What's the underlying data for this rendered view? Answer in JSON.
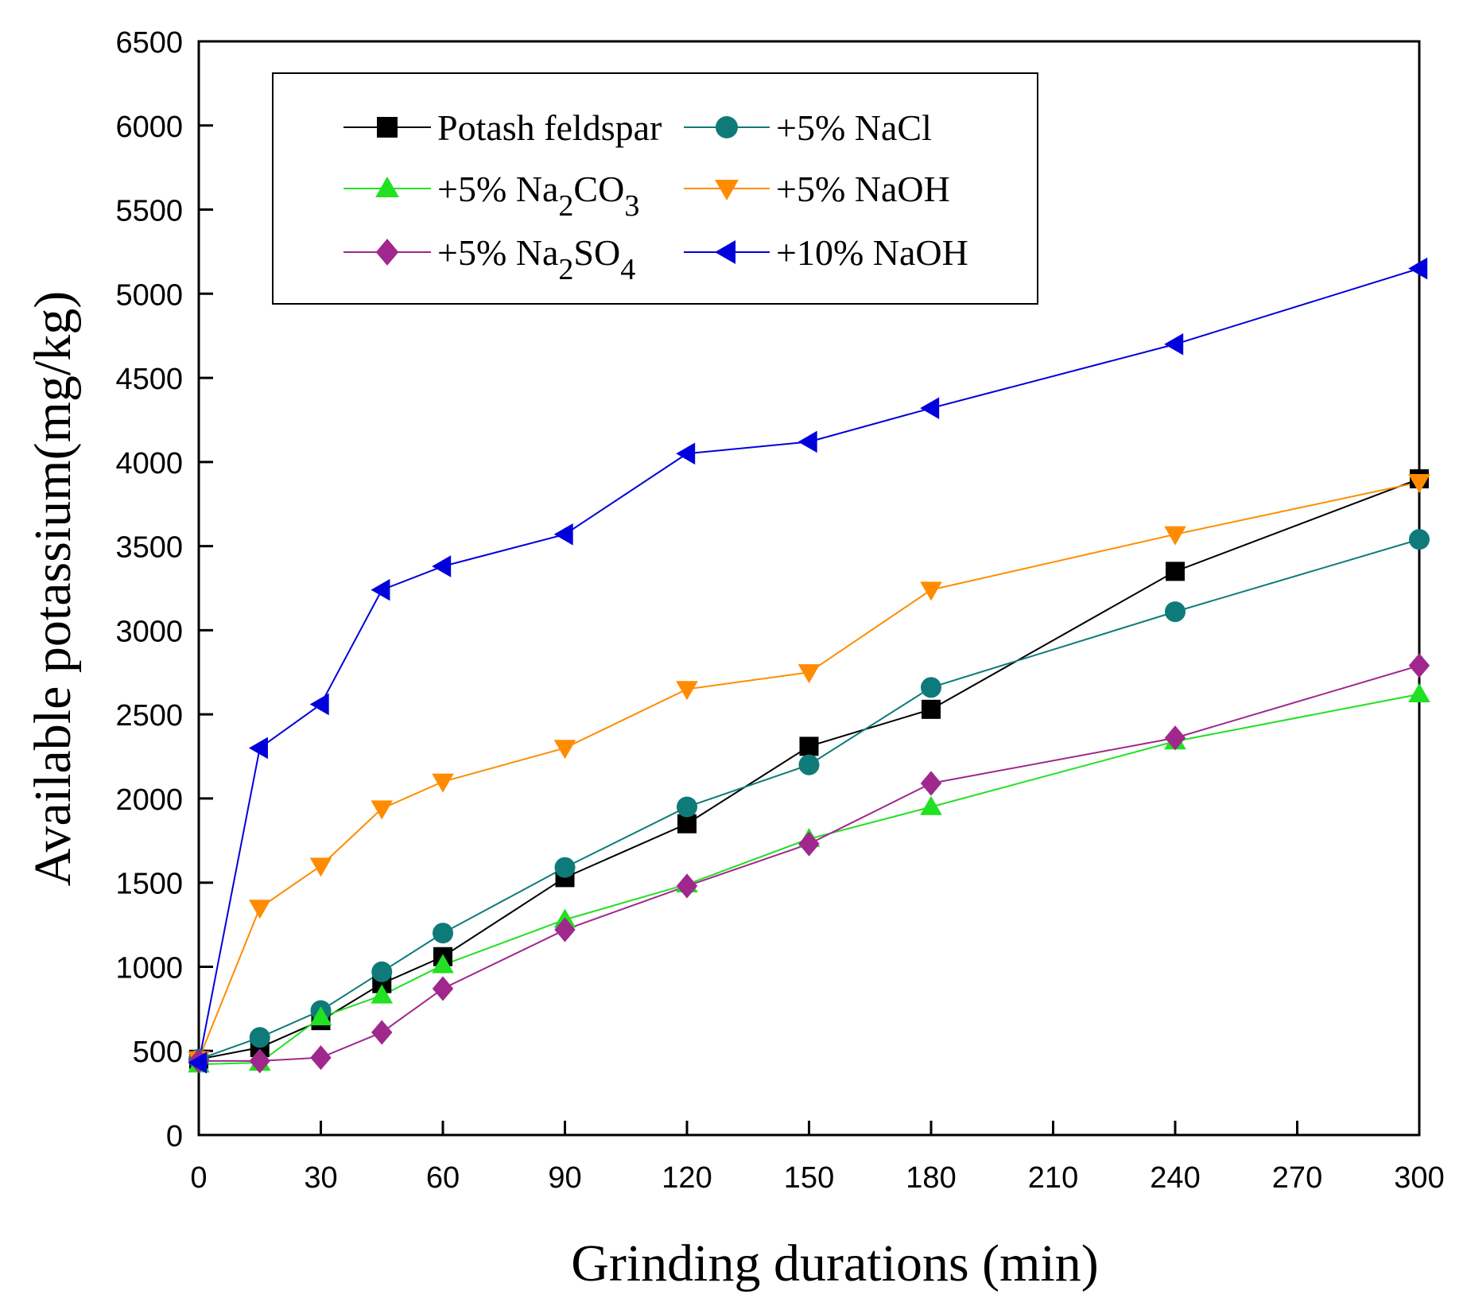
{
  "chart_data": {
    "type": "line",
    "xlabel": "Grinding durations (min)",
    "ylabel": "Available potassium(mg/kg)",
    "x_ticks": [
      "0",
      "30",
      "60",
      "90",
      "120",
      "150",
      "180",
      "210",
      "240",
      "270",
      "300"
    ],
    "y_ticks": [
      "0",
      "500",
      "1000",
      "1500",
      "2000",
      "2500",
      "3000",
      "3500",
      "4000",
      "4500",
      "5000",
      "5500",
      "6000",
      "6500"
    ],
    "xlim": [
      0,
      300
    ],
    "ylim": [
      0,
      6500
    ],
    "x": [
      0,
      15,
      30,
      45,
      60,
      90,
      120,
      150,
      180,
      240,
      300
    ],
    "legend_position": "top-left",
    "series": [
      {
        "name": "Potash feldspar",
        "legend_main": "Potash feldspar",
        "legend_sub": "",
        "legend_tail": "",
        "color": "#000000",
        "marker": "square",
        "values": [
          450,
          520,
          680,
          900,
          1060,
          1530,
          1850,
          2310,
          2530,
          3350,
          3900
        ]
      },
      {
        "name": "+5% NaCl",
        "legend_main": "+5%  NaCl",
        "legend_sub": "",
        "legend_tail": "",
        "color": "#0f7a7a",
        "marker": "circle",
        "values": [
          450,
          580,
          740,
          970,
          1200,
          1590,
          1950,
          2200,
          2660,
          3110,
          3540
        ]
      },
      {
        "name": "+5% Na2CO3",
        "legend_main": "+5%  Na",
        "legend_sub": "2",
        "legend_tail": "CO",
        "legend_sub2": "3",
        "color": "#22e022",
        "marker": "triangle-up",
        "values": [
          420,
          430,
          700,
          830,
          1010,
          1280,
          1490,
          1760,
          1950,
          2340,
          2620
        ]
      },
      {
        "name": "+5% NaOH",
        "legend_main": "+5%  NaOH",
        "legend_sub": "",
        "legend_tail": "",
        "color": "#ff8c00",
        "marker": "triangle-down",
        "values": [
          450,
          1350,
          1600,
          1940,
          2100,
          2300,
          2650,
          2750,
          3240,
          3570,
          3880
        ]
      },
      {
        "name": "+5% Na2SO4",
        "legend_main": "+5%  Na",
        "legend_sub": "2",
        "legend_tail": "SO",
        "legend_sub2": "4",
        "color": "#a0288c",
        "marker": "diamond",
        "values": [
          440,
          440,
          460,
          610,
          870,
          1220,
          1480,
          1730,
          2090,
          2360,
          2790
        ]
      },
      {
        "name": "+10% NaOH",
        "legend_main": "+10% NaOH",
        "legend_sub": "",
        "legend_tail": "",
        "color": "#0000dd",
        "marker": "triangle-left",
        "values": [
          430,
          2300,
          2560,
          3240,
          3380,
          3570,
          4050,
          4120,
          4320,
          4700,
          5150
        ]
      }
    ]
  }
}
